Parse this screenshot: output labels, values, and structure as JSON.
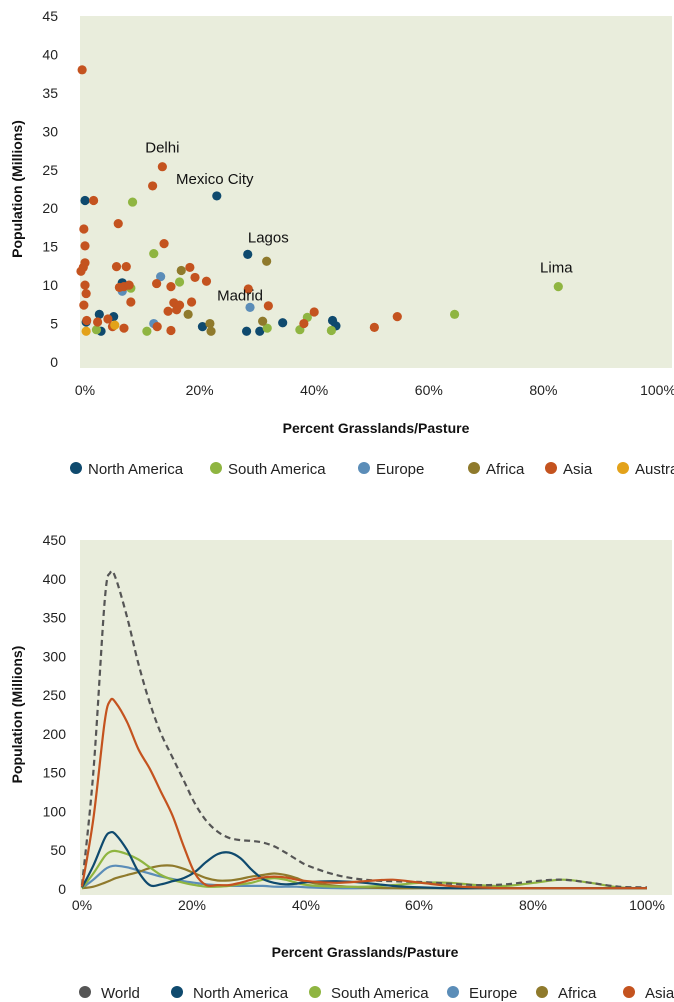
{
  "colors": {
    "plot_background": "#e9eddc",
    "North America": "#0f4a6e",
    "South America": "#8fb541",
    "Europe": "#5b8db8",
    "Africa": "#8f7a2c",
    "Asia": "#c4531f",
    "Australia": "#e3a21a",
    "World": "#555555"
  },
  "chart_data": [
    {
      "type": "scatter",
      "xlabel": "Percent Grasslands/Pasture",
      "ylabel": "Population (Millions)",
      "xlim": [
        0,
        100
      ],
      "ylim": [
        0,
        45
      ],
      "x_ticks": [
        "0%",
        "20%",
        "40%",
        "60%",
        "80%",
        "100%"
      ],
      "y_ticks": [
        "0",
        "5",
        "10",
        "15",
        "20",
        "25",
        "30",
        "35",
        "40",
        "45"
      ],
      "legend": [
        "North America",
        "South America",
        "Europe",
        "Africa",
        "Asia",
        "Australia"
      ],
      "legend_position": "bottom",
      "annotations": [
        {
          "text": "Delhi",
          "x": 13.5,
          "y": 25.4
        },
        {
          "text": "Mexico City",
          "x": 23,
          "y": 21.6
        },
        {
          "text": "Lagos",
          "x": 28.5,
          "y": 14.0
        },
        {
          "text": "Madrid",
          "x": 28.8,
          "y": 7.1
        },
        {
          "text": "Lima",
          "x": 82.6,
          "y": 9.8
        }
      ],
      "series": [
        {
          "name": "North America",
          "points": [
            [
              0,
              21
            ],
            [
              0.2,
              5.2
            ],
            [
              2.5,
              6.2
            ],
            [
              2.8,
              4
            ],
            [
              5,
              5.9
            ],
            [
              6.5,
              10.3
            ],
            [
              20.5,
              4.6
            ],
            [
              23,
              21.6
            ],
            [
              28.2,
              4
            ],
            [
              28.4,
              14
            ],
            [
              30.5,
              4
            ],
            [
              34.5,
              5.1
            ],
            [
              43.2,
              5.4
            ],
            [
              43.8,
              4.7
            ]
          ]
        },
        {
          "name": "South America",
          "points": [
            [
              2,
              4.2
            ],
            [
              8,
              9.6
            ],
            [
              8.3,
              20.8
            ],
            [
              10.8,
              4
            ],
            [
              12,
              14.1
            ],
            [
              16.5,
              10.4
            ],
            [
              31.8,
              4.4
            ],
            [
              37.5,
              4.2
            ],
            [
              38.8,
              5.8
            ],
            [
              43,
              4.1
            ],
            [
              64.5,
              6.2
            ],
            [
              82.6,
              9.8
            ]
          ]
        },
        {
          "name": "Europe",
          "points": [
            [
              6.5,
              9.2
            ],
            [
              12,
              5
            ],
            [
              13.2,
              11.1
            ],
            [
              28.8,
              7.1
            ]
          ]
        },
        {
          "name": "Africa",
          "points": [
            [
              16.8,
              11.9
            ],
            [
              18,
              6.2
            ],
            [
              21.8,
              5
            ],
            [
              22,
              4
            ],
            [
              31,
              5.3
            ],
            [
              31.7,
              13.1
            ]
          ]
        },
        {
          "name": "Asia",
          "points": [
            [
              -0.5,
              38
            ],
            [
              -0.7,
              11.8
            ],
            [
              -0.3,
              12.3
            ],
            [
              -0.2,
              7.4
            ],
            [
              0,
              12.9
            ],
            [
              -0.2,
              17.3
            ],
            [
              0,
              15.1
            ],
            [
              0,
              10
            ],
            [
              0.2,
              8.9
            ],
            [
              0.3,
              5.4
            ],
            [
              1.5,
              21
            ],
            [
              2.2,
              5.2
            ],
            [
              4,
              5.6
            ],
            [
              4.8,
              4.6
            ],
            [
              5.5,
              12.4
            ],
            [
              5.8,
              18
            ],
            [
              6,
              9.7
            ],
            [
              6.8,
              4.4
            ],
            [
              6.8,
              9.8
            ],
            [
              7.2,
              12.4
            ],
            [
              7.7,
              10
            ],
            [
              8,
              7.8
            ],
            [
              11.8,
              22.9
            ],
            [
              12.5,
              10.2
            ],
            [
              12.6,
              4.6
            ],
            [
              13.5,
              25.4
            ],
            [
              13.8,
              15.4
            ],
            [
              14.5,
              6.6
            ],
            [
              15,
              9.8
            ],
            [
              15,
              4.1
            ],
            [
              15.5,
              7.7
            ],
            [
              16,
              6.8
            ],
            [
              16.5,
              7.4
            ],
            [
              18.3,
              12.3
            ],
            [
              18.6,
              7.8
            ],
            [
              19.2,
              11
            ],
            [
              21.2,
              10.5
            ],
            [
              28.5,
              9.5
            ],
            [
              32,
              7.3
            ],
            [
              38.2,
              5
            ],
            [
              40,
              6.5
            ],
            [
              50.5,
              4.5
            ],
            [
              54.5,
              5.9
            ]
          ]
        },
        {
          "name": "Australia",
          "points": [
            [
              0.2,
              4
            ],
            [
              5.2,
              4.8
            ]
          ]
        }
      ]
    },
    {
      "type": "line",
      "xlabel": "Percent Grasslands/Pasture",
      "ylabel": "Population (Millions)",
      "xlim": [
        0,
        100
      ],
      "ylim": [
        0,
        450
      ],
      "x_ticks": [
        "0%",
        "20%",
        "40%",
        "60%",
        "80%",
        "100%"
      ],
      "y_ticks": [
        "0",
        "50",
        "100",
        "150",
        "200",
        "250",
        "300",
        "350",
        "400",
        "450"
      ],
      "legend": [
        "World",
        "North America",
        "South America",
        "Europe",
        "Africa",
        "Asia"
      ],
      "legend_position": "bottom",
      "x": [
        0,
        2,
        4,
        5,
        6,
        8,
        10,
        12,
        14,
        16,
        18,
        20,
        22,
        24,
        26,
        28,
        30,
        32,
        34,
        36,
        38,
        40,
        45,
        50,
        55,
        60,
        65,
        70,
        75,
        80,
        85,
        90,
        95,
        100
      ],
      "series": [
        {
          "name": "World",
          "style": "dashed",
          "values": [
            5,
            150,
            370,
            408,
            400,
            350,
            290,
            240,
            200,
            170,
            140,
            110,
            88,
            74,
            66,
            63,
            62,
            60,
            55,
            47,
            38,
            30,
            18,
            12,
            10,
            9,
            7,
            5,
            6,
            10,
            12,
            8,
            3,
            2
          ]
        },
        {
          "name": "North America",
          "values": [
            2,
            30,
            65,
            73,
            70,
            50,
            22,
            5,
            6,
            10,
            14,
            22,
            35,
            45,
            47,
            40,
            25,
            13,
            8,
            6,
            7,
            9,
            10,
            8,
            4,
            2,
            1,
            1,
            1,
            1,
            1,
            1,
            1,
            1
          ]
        },
        {
          "name": "South America",
          "values": [
            1,
            20,
            42,
            48,
            49,
            45,
            38,
            28,
            18,
            12,
            8,
            5,
            3,
            3,
            4,
            6,
            8,
            12,
            14,
            12,
            8,
            5,
            3,
            3,
            5,
            8,
            8,
            5,
            4,
            8,
            12,
            8,
            2,
            1
          ]
        },
        {
          "name": "Europe",
          "values": [
            1,
            12,
            25,
            29,
            30,
            28,
            24,
            20,
            16,
            13,
            10,
            8,
            6,
            5,
            4,
            4,
            4,
            4,
            3,
            3,
            3,
            2,
            1,
            1,
            1,
            1,
            1,
            1,
            1,
            1,
            1,
            1,
            1,
            1
          ]
        },
        {
          "name": "Africa",
          "values": [
            1,
            3,
            8,
            11,
            14,
            18,
            22,
            27,
            30,
            30,
            26,
            20,
            14,
            11,
            11,
            13,
            16,
            18,
            20,
            18,
            14,
            9,
            4,
            2,
            1,
            1,
            1,
            1,
            1,
            1,
            1,
            1,
            1,
            1
          ]
        },
        {
          "name": "Asia",
          "values": [
            3,
            90,
            215,
            243,
            240,
            215,
            180,
            155,
            125,
            95,
            55,
            20,
            5,
            5,
            5,
            8,
            12,
            15,
            16,
            15,
            12,
            10,
            8,
            10,
            12,
            8,
            4,
            2,
            1,
            1,
            1,
            1,
            1,
            1
          ]
        }
      ]
    }
  ]
}
